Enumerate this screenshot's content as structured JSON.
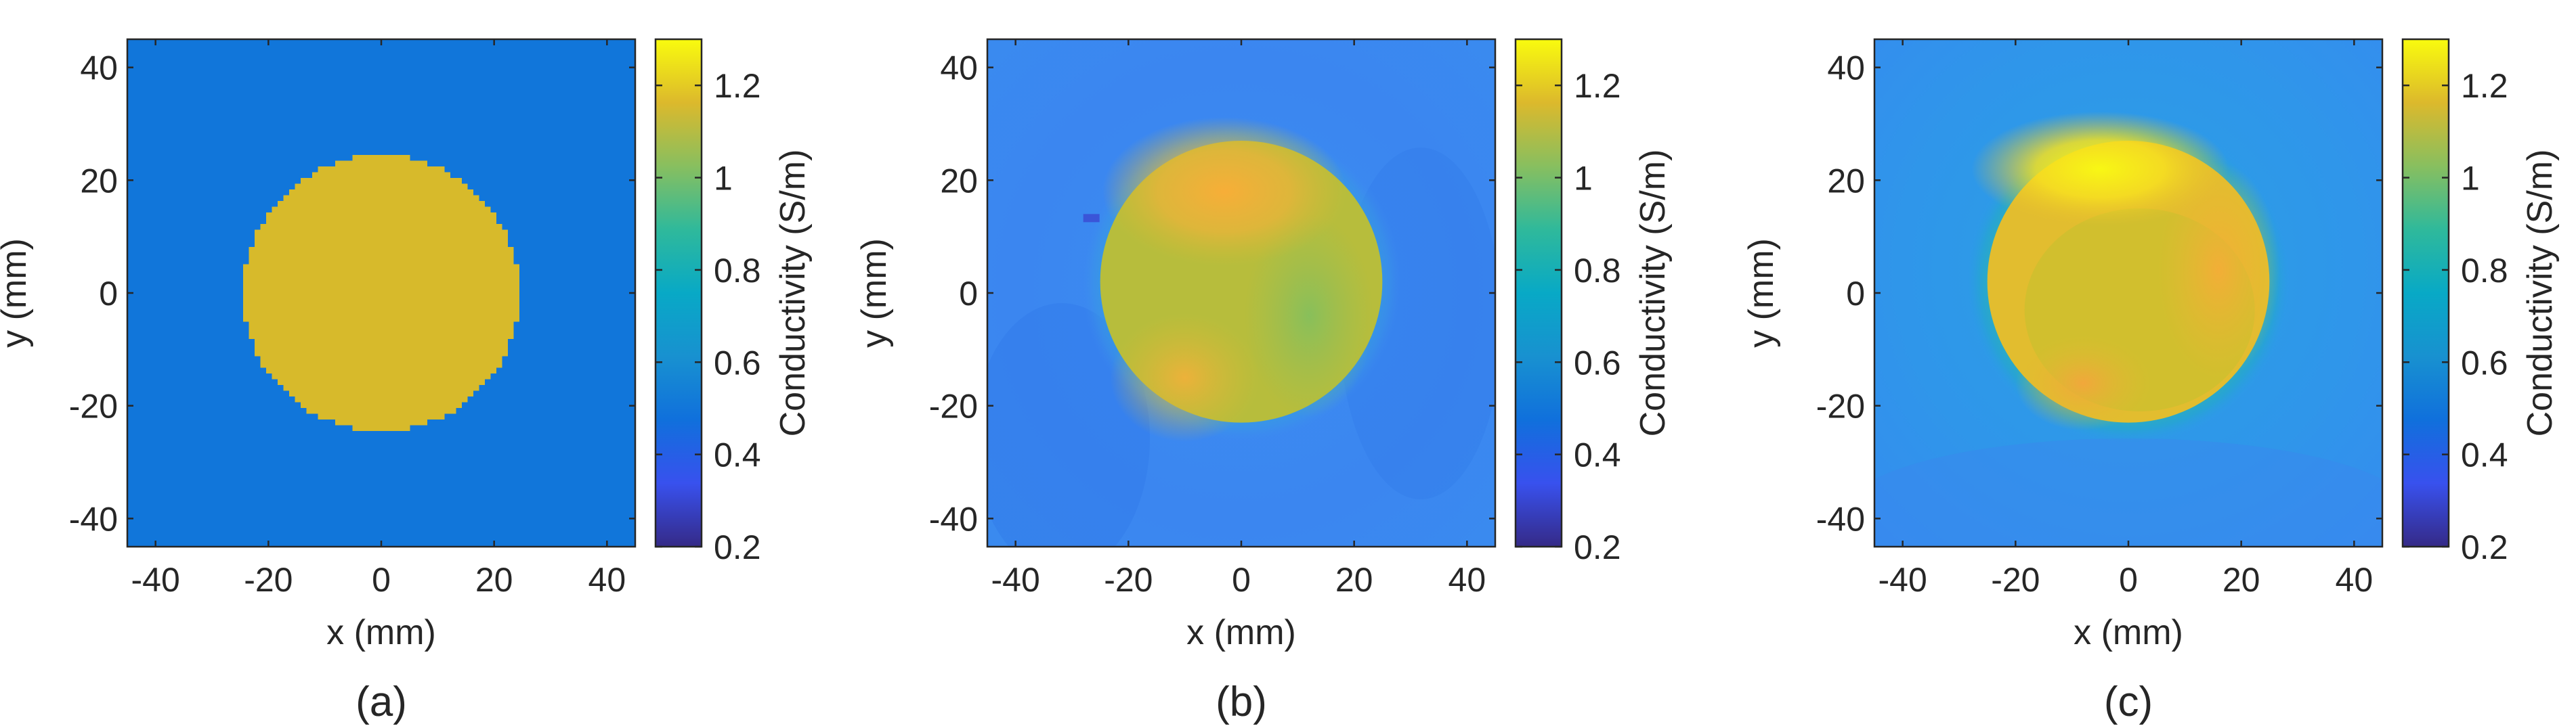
{
  "figure": {
    "panels": [
      {
        "id": "a",
        "caption": "(a)"
      },
      {
        "id": "b",
        "caption": "(b)"
      },
      {
        "id": "c",
        "caption": "(c)"
      }
    ]
  },
  "chart_data": [
    {
      "type": "heatmap",
      "panel": "(a)",
      "xlabel": "x (mm)",
      "ylabel": "y (mm)",
      "colorbar_label": "Conductivity (S/m)",
      "colormap": "parula",
      "xlim": [
        -45,
        45
      ],
      "ylim": [
        -45,
        45
      ],
      "xticks": [
        -40,
        -20,
        0,
        20,
        40
      ],
      "yticks": [
        -40,
        -20,
        0,
        20,
        40
      ],
      "clim": [
        0.2,
        1.3
      ],
      "cticks": [
        0.2,
        0.4,
        0.6,
        0.8,
        1,
        1.2
      ],
      "grid": false,
      "background": {
        "value": 0.5,
        "description": "uniform"
      },
      "inclusion": {
        "shape": "circle",
        "center": [
          0,
          0
        ],
        "radius_mm": 24.5,
        "value": 1.06,
        "pixelated": true
      }
    },
    {
      "type": "heatmap",
      "panel": "(b)",
      "xlabel": "x (mm)",
      "ylabel": "y (mm)",
      "colorbar_label": "Conductivity (S/m)",
      "colormap": "parula",
      "xlim": [
        -45,
        45
      ],
      "ylim": [
        -45,
        45
      ],
      "xticks": [
        -40,
        -20,
        0,
        20,
        40
      ],
      "yticks": [
        -40,
        -20,
        0,
        20,
        40
      ],
      "clim": [
        0.2,
        1.3
      ],
      "cticks": [
        0.2,
        0.4,
        0.6,
        0.8,
        1,
        1.2
      ],
      "grid": false,
      "background": {
        "value": 0.5
      },
      "inclusion": {
        "shape": "circle",
        "center": [
          0,
          2
        ],
        "radius_mm": 25,
        "value_range": [
          0.9,
          1.15
        ],
        "hotspots": [
          {
            "center": [
              -3,
              18
            ],
            "value": 1.13
          },
          {
            "center": [
              -10,
              -15
            ],
            "value": 1.1
          }
        ]
      }
    },
    {
      "type": "heatmap",
      "panel": "(c)",
      "xlabel": "x (mm)",
      "ylabel": "y (mm)",
      "colorbar_label": "Conductivity (S/m)",
      "colormap": "parula",
      "xlim": [
        -45,
        45
      ],
      "ylim": [
        -45,
        45
      ],
      "xticks": [
        -40,
        -20,
        0,
        20,
        40
      ],
      "yticks": [
        -40,
        -20,
        0,
        20,
        40
      ],
      "clim": [
        0.2,
        1.3
      ],
      "cticks": [
        0.2,
        0.4,
        0.6,
        0.8,
        1,
        1.2
      ],
      "grid": false,
      "background": {
        "value": 0.55
      },
      "inclusion": {
        "shape": "circle",
        "center": [
          0,
          2
        ],
        "radius_mm": 25,
        "value_range": [
          1.05,
          1.3
        ],
        "hotspots": [
          {
            "center": [
              -5,
              22
            ],
            "value": 1.3
          },
          {
            "center": [
              -8,
              -16
            ],
            "value": 1.15
          }
        ]
      }
    }
  ]
}
